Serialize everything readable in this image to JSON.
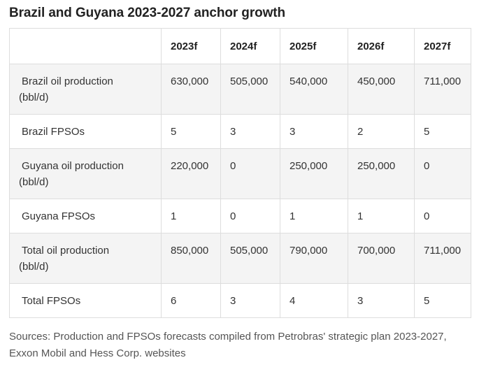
{
  "title": "Brazil and Guyana 2023-2027 anchor growth",
  "table": {
    "headers": [
      "",
      "2023f",
      "2024f",
      "2025f",
      "2026f",
      "2027f"
    ],
    "rows": [
      {
        "label_line1": "Brazil oil production",
        "label_line2": "(bbl/d)",
        "values": [
          "630,000",
          "505,000",
          "540,000",
          "450,000",
          "711,000"
        ]
      },
      {
        "label_line1": "Brazil FPSOs",
        "values": [
          "5",
          "3",
          "3",
          "2",
          "5"
        ]
      },
      {
        "label_line1": "Guyana oil production",
        "label_line2": "(bbl/d)",
        "values": [
          "220,000",
          "0",
          "250,000",
          "250,000",
          "0"
        ]
      },
      {
        "label_line1": "Guyana FPSOs",
        "values": [
          "1",
          "0",
          "1",
          "1",
          "0"
        ]
      },
      {
        "label_line1": "Total oil production",
        "label_line2": "(bbl/d)",
        "values": [
          "850,000",
          "505,000",
          "790,000",
          "700,000",
          "711,000"
        ]
      },
      {
        "label_line1": "Total FPSOs",
        "values": [
          "6",
          "3",
          "4",
          "3",
          "5"
        ]
      }
    ]
  },
  "source": "Sources: Production and FPSOs forecasts compiled from Petrobras' strategic plan 2023-2027, Exxon Mobil and Hess Corp. websites"
}
